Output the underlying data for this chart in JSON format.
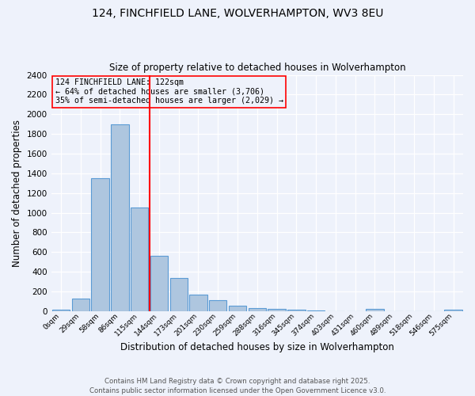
{
  "title1": "124, FINCHFIELD LANE, WOLVERHAMPTON, WV3 8EU",
  "title2": "Size of property relative to detached houses in Wolverhampton",
  "xlabel": "Distribution of detached houses by size in Wolverhampton",
  "ylabel": "Number of detached properties",
  "footer1": "Contains HM Land Registry data © Crown copyright and database right 2025.",
  "footer2": "Contains public sector information licensed under the Open Government Licence v3.0.",
  "bin_labels": [
    "0sqm",
    "29sqm",
    "58sqm",
    "86sqm",
    "115sqm",
    "144sqm",
    "173sqm",
    "201sqm",
    "230sqm",
    "259sqm",
    "288sqm",
    "316sqm",
    "345sqm",
    "374sqm",
    "403sqm",
    "431sqm",
    "460sqm",
    "489sqm",
    "518sqm",
    "546sqm",
    "575sqm"
  ],
  "bar_values": [
    15,
    130,
    1350,
    1900,
    1050,
    560,
    340,
    165,
    110,
    60,
    35,
    25,
    18,
    8,
    0,
    0,
    20,
    0,
    0,
    0,
    15
  ],
  "bar_color": "#aec6df",
  "bar_edge_color": "#5b9bd5",
  "red_line_bin": 4,
  "property_label": "124 FINCHFIELD LANE: 122sqm",
  "annotation_line1": "← 64% of detached houses are smaller (3,706)",
  "annotation_line2": "35% of semi-detached houses are larger (2,029) →",
  "ylim": [
    0,
    2400
  ],
  "yticks": [
    0,
    200,
    400,
    600,
    800,
    1000,
    1200,
    1400,
    1600,
    1800,
    2000,
    2200,
    2400
  ],
  "bg_color": "#eef2fb",
  "grid_color": "#ffffff"
}
